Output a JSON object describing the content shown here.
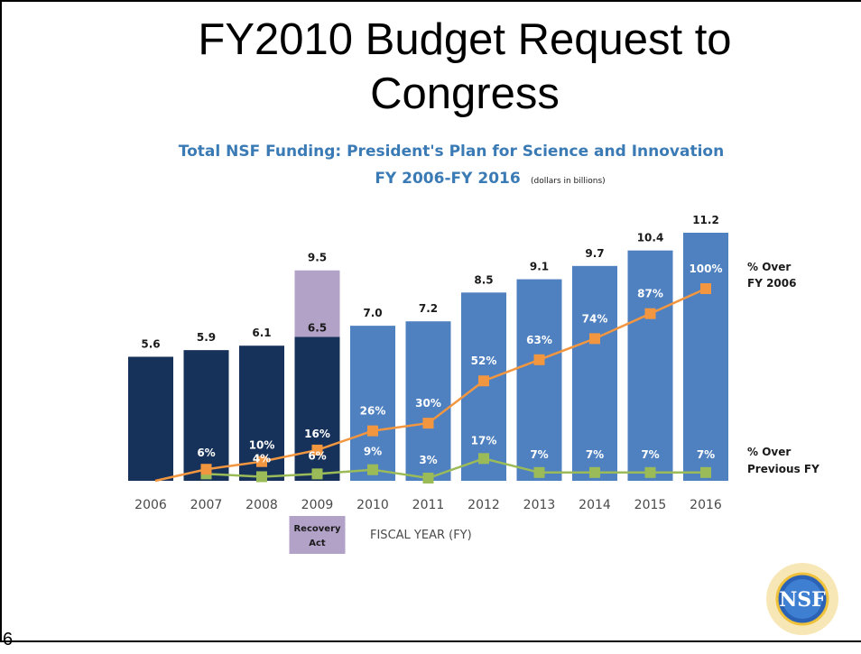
{
  "slide": {
    "title_line1": "FY2010 Budget Request to",
    "title_line2": "Congress",
    "page_number": "6"
  },
  "logo": {
    "name": "nsf-logo",
    "text": "NSF"
  },
  "chart_data": {
    "type": "bar",
    "title": "Total NSF Funding: President's Plan for Science and Innovation",
    "subtitle": "FY 2006-FY 2016",
    "subtitle_note": "(dollars in billions)",
    "xlabel": "FISCAL YEAR (FY)",
    "ylabel": "",
    "ylim": [
      0,
      11.5
    ],
    "grid": false,
    "categories": [
      "2006",
      "2007",
      "2008",
      "2009",
      "2010",
      "2011",
      "2012",
      "2013",
      "2014",
      "2015",
      "2016"
    ],
    "bar_kind": [
      "actual",
      "actual",
      "actual",
      "actual",
      "request",
      "request",
      "request",
      "request",
      "request",
      "request",
      "request"
    ],
    "series": [
      {
        "name": "Base",
        "values": [
          5.6,
          5.9,
          6.1,
          6.5,
          7.0,
          7.2,
          8.5,
          9.1,
          9.7,
          10.4,
          11.2
        ]
      },
      {
        "name": "Recovery Act",
        "values": [
          0,
          0,
          0,
          3.0,
          0,
          0,
          0,
          0,
          0,
          0,
          0
        ]
      }
    ],
    "total_labels": [
      "5.6",
      "5.9",
      "6.1",
      "9.5",
      "7.0",
      "7.2",
      "8.5",
      "9.1",
      "9.7",
      "10.4",
      "11.2"
    ],
    "inner_labels": {
      "3": "6.5"
    },
    "pct_over_2006": [
      0,
      6,
      10,
      16,
      26,
      30,
      52,
      63,
      74,
      87,
      100
    ],
    "pct_over_2006_labels": [
      "",
      "6%",
      "10%",
      "16%",
      "26%",
      "30%",
      "52%",
      "63%",
      "74%",
      "87%",
      "100%"
    ],
    "pct_over_prev": [
      null,
      6,
      4,
      6,
      9,
      3,
      17,
      7,
      7,
      7,
      7
    ],
    "pct_over_prev_labels": [
      "",
      "",
      "4%",
      "6%",
      "9%",
      "3%",
      "17%",
      "7%",
      "7%",
      "7%",
      "7%"
    ],
    "line_axis_range": [
      0,
      100
    ],
    "legend_pct_2006": [
      "% Over",
      "FY 2006"
    ],
    "legend_pct_prev": [
      "% Over",
      "Previous FY"
    ],
    "recovery_label": [
      "Recovery",
      "Act"
    ],
    "colors": {
      "actual_bar": "#17325a",
      "request_bar": "#4f81c1",
      "recovery_bar": "#b3a2c7",
      "line_2006": "#f39640",
      "line_prev": "#9bbb59",
      "heading": "#3a7ab5",
      "label_dark": "#1a1a1a",
      "label_light": "#ffffff",
      "axis_text": "#4a4a4a"
    }
  }
}
